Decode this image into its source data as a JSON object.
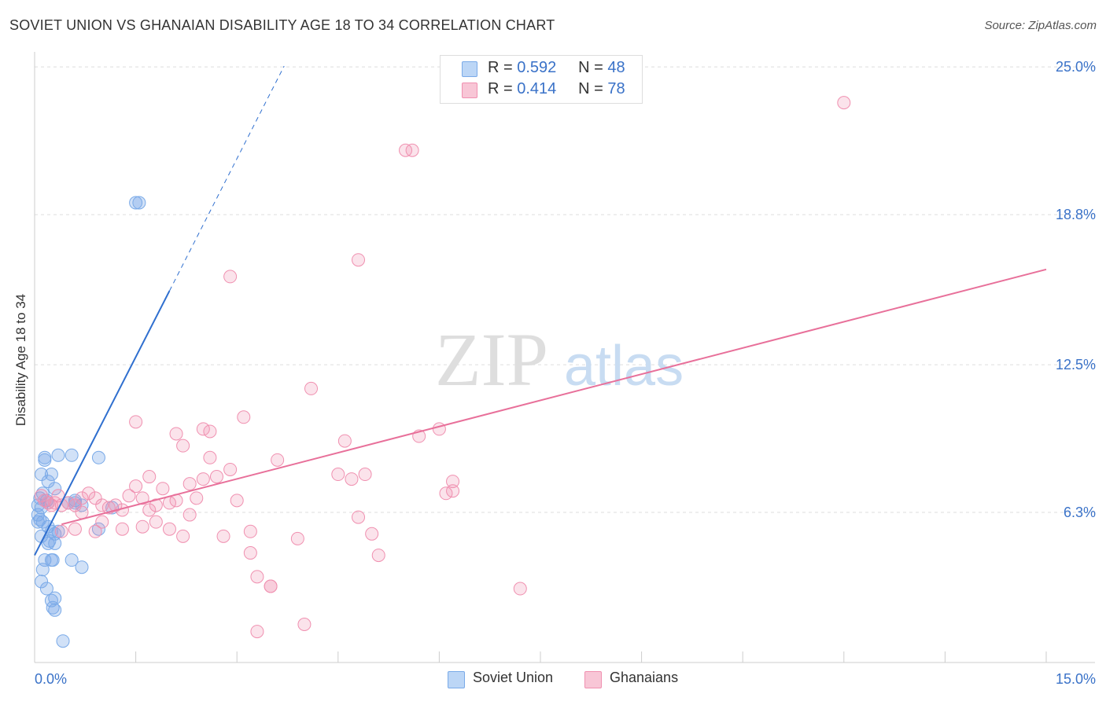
{
  "header": {
    "title": "SOVIET UNION VS GHANAIAN DISABILITY AGE 18 TO 34 CORRELATION CHART",
    "source": "Source: ZipAtlas.com"
  },
  "watermark": {
    "zip": "ZIP",
    "atlas": "atlas"
  },
  "legend": {
    "r_label": "R =",
    "n_label": "N =",
    "soviet": {
      "r": "0.592",
      "n": "48"
    },
    "ghana": {
      "r": "0.414",
      "n": "78"
    }
  },
  "colors": {
    "soviet": "#7aaae8",
    "soviet_line": "#2f6fcf",
    "ghana": "#f090b0",
    "ghana_line": "#e8709a",
    "tick_label": "#3a72c8"
  },
  "chart_data": {
    "type": "scatter",
    "title": "SOVIET UNION VS GHANAIAN DISABILITY AGE 18 TO 34 CORRELATION CHART",
    "xlabel": "",
    "ylabel": "Disability Age 18 to 34",
    "xlim": [
      0,
      15
    ],
    "ylim": [
      0,
      25.5
    ],
    "x_tick_labels": [
      "0.0%",
      "15.0%"
    ],
    "y_ticks": [
      6.3,
      12.5,
      18.8,
      25.0
    ],
    "y_tick_labels": [
      "6.3%",
      "12.5%",
      "18.8%",
      "25.0%"
    ],
    "grid": true,
    "legend_position": "top-center",
    "series": [
      {
        "name": "Soviet Union",
        "r": 0.592,
        "n": 48,
        "trend": {
          "x0": 0.0,
          "y0": 4.5,
          "x1": 2.0,
          "y1": 15.6,
          "dash_to_x": 3.7
        },
        "points": [
          [
            0.05,
            6.6
          ],
          [
            0.05,
            6.2
          ],
          [
            0.08,
            6.9
          ],
          [
            0.1,
            5.3
          ],
          [
            0.05,
            5.9
          ],
          [
            0.12,
            5.9
          ],
          [
            0.1,
            7.9
          ],
          [
            0.15,
            8.5
          ],
          [
            0.2,
            7.6
          ],
          [
            0.25,
            7.9
          ],
          [
            0.3,
            7.3
          ],
          [
            0.35,
            8.7
          ],
          [
            0.18,
            6.8
          ],
          [
            0.1,
            6.5
          ],
          [
            0.2,
            5.7
          ],
          [
            0.25,
            5.5
          ],
          [
            0.3,
            5.4
          ],
          [
            0.35,
            5.5
          ],
          [
            0.2,
            5.0
          ],
          [
            0.3,
            5.0
          ],
          [
            0.25,
            4.3
          ],
          [
            0.27,
            4.3
          ],
          [
            0.15,
            4.3
          ],
          [
            0.12,
            3.9
          ],
          [
            0.1,
            3.4
          ],
          [
            0.18,
            3.1
          ],
          [
            0.25,
            2.6
          ],
          [
            0.3,
            2.7
          ],
          [
            0.27,
            2.3
          ],
          [
            0.3,
            2.2
          ],
          [
            0.42,
            0.9
          ],
          [
            0.55,
            8.7
          ],
          [
            0.6,
            6.8
          ],
          [
            0.7,
            6.6
          ],
          [
            0.95,
            8.6
          ],
          [
            0.95,
            5.6
          ],
          [
            1.15,
            6.5
          ],
          [
            1.5,
            19.3
          ],
          [
            1.55,
            19.3
          ],
          [
            0.55,
            4.3
          ],
          [
            0.7,
            4.0
          ],
          [
            0.15,
            8.6
          ],
          [
            0.12,
            7.1
          ],
          [
            0.2,
            6.7
          ],
          [
            0.22,
            5.1
          ],
          [
            0.08,
            6.0
          ],
          [
            0.5,
            6.7
          ],
          [
            0.6,
            6.7
          ]
        ]
      },
      {
        "name": "Ghanaians",
        "r": 0.414,
        "n": 78,
        "trend": {
          "x0": 0.4,
          "y0": 5.8,
          "x1": 15.0,
          "y1": 16.5
        },
        "points": [
          [
            0.1,
            7.0
          ],
          [
            0.15,
            6.8
          ],
          [
            0.2,
            6.7
          ],
          [
            0.25,
            6.6
          ],
          [
            0.3,
            6.7
          ],
          [
            0.4,
            6.6
          ],
          [
            0.5,
            6.7
          ],
          [
            0.6,
            6.6
          ],
          [
            0.7,
            6.3
          ],
          [
            0.8,
            7.1
          ],
          [
            0.9,
            6.9
          ],
          [
            1.0,
            6.6
          ],
          [
            1.1,
            6.5
          ],
          [
            1.2,
            6.6
          ],
          [
            1.3,
            6.4
          ],
          [
            1.4,
            7.0
          ],
          [
            1.5,
            7.4
          ],
          [
            1.6,
            6.9
          ],
          [
            1.7,
            6.4
          ],
          [
            1.8,
            6.6
          ],
          [
            1.9,
            7.3
          ],
          [
            2.0,
            6.7
          ],
          [
            2.1,
            6.8
          ],
          [
            2.2,
            5.3
          ],
          [
            2.3,
            6.2
          ],
          [
            2.4,
            6.9
          ],
          [
            2.5,
            7.7
          ],
          [
            2.6,
            8.6
          ],
          [
            2.7,
            7.8
          ],
          [
            2.8,
            5.3
          ],
          [
            2.9,
            8.1
          ],
          [
            3.0,
            6.8
          ],
          [
            3.2,
            5.5
          ],
          [
            3.3,
            3.6
          ],
          [
            3.5,
            3.2
          ],
          [
            3.6,
            8.5
          ],
          [
            4.1,
            11.5
          ],
          [
            4.0,
            1.6
          ],
          [
            4.5,
            7.9
          ],
          [
            4.6,
            9.3
          ],
          [
            4.7,
            7.7
          ],
          [
            4.9,
            7.9
          ],
          [
            5.1,
            4.5
          ],
          [
            5.5,
            21.5
          ],
          [
            5.6,
            21.5
          ],
          [
            5.7,
            9.5
          ],
          [
            6.0,
            9.8
          ],
          [
            6.1,
            7.1
          ],
          [
            6.2,
            7.2
          ],
          [
            6.2,
            7.6
          ],
          [
            7.2,
            3.1
          ],
          [
            12.0,
            23.5
          ],
          [
            1.5,
            10.1
          ],
          [
            1.7,
            7.8
          ],
          [
            2.1,
            9.6
          ],
          [
            2.2,
            9.1
          ],
          [
            2.5,
            9.8
          ],
          [
            2.6,
            9.7
          ],
          [
            3.1,
            10.3
          ],
          [
            2.9,
            16.2
          ],
          [
            4.8,
            16.9
          ],
          [
            4.8,
            6.1
          ],
          [
            5.0,
            5.4
          ],
          [
            3.9,
            5.2
          ],
          [
            3.5,
            3.2
          ],
          [
            3.3,
            1.3
          ],
          [
            3.2,
            4.6
          ],
          [
            1.0,
            5.9
          ],
          [
            0.9,
            5.5
          ],
          [
            0.7,
            6.9
          ],
          [
            0.4,
            5.5
          ],
          [
            0.35,
            7.0
          ],
          [
            1.3,
            5.6
          ],
          [
            1.8,
            5.9
          ],
          [
            2.0,
            5.6
          ],
          [
            1.6,
            5.7
          ],
          [
            0.6,
            5.6
          ],
          [
            2.3,
            7.5
          ]
        ]
      }
    ]
  }
}
